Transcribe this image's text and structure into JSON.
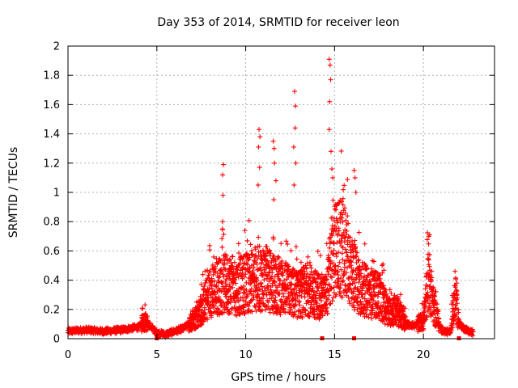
{
  "chart_data": {
    "type": "scatter",
    "title": "Day 353 of 2014, SRMTID for receiver leon",
    "xlabel": "GPS time / hours",
    "ylabel": "SRMTID / TECUs",
    "xlim": [
      0,
      24
    ],
    "ylim": [
      0,
      2
    ],
    "grid": true,
    "marker": "+",
    "marker_color": "#ff0000",
    "x_ticks": [
      0,
      5,
      10,
      15,
      20
    ],
    "x_tick_labels": [
      "0",
      "5",
      "10",
      "15",
      "20"
    ],
    "y_ticks": [
      0,
      0.2,
      0.4,
      0.6,
      0.8,
      1,
      1.2,
      1.4,
      1.6,
      1.8,
      2
    ],
    "y_tick_labels": [
      "0",
      "0.2",
      "0.4",
      "0.6",
      "0.8",
      "1",
      "1.2",
      "1.4",
      "1.6",
      "1.8",
      "2"
    ],
    "series": [
      {
        "name": "SRMTID",
        "envelope": {
          "description": "approximate typical level of the point cloud versus GPS time (hours, TECU)",
          "x": [
            0,
            1,
            2,
            3,
            4,
            4.3,
            4.6,
            5,
            5.5,
            6,
            6.5,
            7,
            7.5,
            8,
            8.5,
            9,
            9.5,
            10,
            10.5,
            11,
            11.5,
            12,
            12.5,
            13,
            13.5,
            14,
            14.5,
            15,
            15.5,
            16,
            16.5,
            17,
            17.5,
            18,
            18.5,
            19,
            19.5,
            20,
            20.3,
            20.6,
            21,
            21.5,
            21.8,
            22,
            22.5,
            22.8
          ],
          "y": [
            0.05,
            0.06,
            0.05,
            0.06,
            0.08,
            0.12,
            0.09,
            0.04,
            0.03,
            0.05,
            0.07,
            0.12,
            0.2,
            0.32,
            0.36,
            0.38,
            0.35,
            0.38,
            0.4,
            0.42,
            0.38,
            0.36,
            0.32,
            0.3,
            0.34,
            0.3,
            0.28,
            0.6,
            0.62,
            0.45,
            0.35,
            0.3,
            0.3,
            0.18,
            0.2,
            0.1,
            0.09,
            0.12,
            0.42,
            0.2,
            0.06,
            0.04,
            0.3,
            0.1,
            0.05,
            0.04
          ]
        },
        "spikes": [
          {
            "x": 8.75,
            "y": 1.19
          },
          {
            "x": 8.7,
            "y": 1.12
          },
          {
            "x": 8.72,
            "y": 0.98
          },
          {
            "x": 8.7,
            "y": 0.8
          },
          {
            "x": 10.75,
            "y": 1.43
          },
          {
            "x": 10.8,
            "y": 1.38
          },
          {
            "x": 10.72,
            "y": 1.31
          },
          {
            "x": 10.78,
            "y": 1.17
          },
          {
            "x": 10.7,
            "y": 1.05
          },
          {
            "x": 11.55,
            "y": 1.35
          },
          {
            "x": 11.6,
            "y": 1.3
          },
          {
            "x": 11.62,
            "y": 1.2
          },
          {
            "x": 11.7,
            "y": 1.08
          },
          {
            "x": 11.58,
            "y": 0.95
          },
          {
            "x": 12.75,
            "y": 1.69
          },
          {
            "x": 12.8,
            "y": 1.59
          },
          {
            "x": 12.78,
            "y": 1.44
          },
          {
            "x": 12.7,
            "y": 1.31
          },
          {
            "x": 12.82,
            "y": 1.2
          },
          {
            "x": 12.72,
            "y": 1.05
          },
          {
            "x": 14.7,
            "y": 1.91
          },
          {
            "x": 14.75,
            "y": 1.87
          },
          {
            "x": 14.78,
            "y": 1.77
          },
          {
            "x": 14.72,
            "y": 1.62
          },
          {
            "x": 14.7,
            "y": 1.43
          },
          {
            "x": 14.8,
            "y": 1.28
          },
          {
            "x": 14.85,
            "y": 1.16
          },
          {
            "x": 14.9,
            "y": 1.1
          },
          {
            "x": 16.1,
            "y": 1.15
          },
          {
            "x": 16.15,
            "y": 1.1
          },
          {
            "x": 16.2,
            "y": 1.0
          },
          {
            "x": 20.3,
            "y": 0.7
          },
          {
            "x": 20.35,
            "y": 0.71
          }
        ],
        "zero_markers_x": [
          5.0,
          14.3,
          16.1,
          22.0
        ]
      }
    ]
  }
}
